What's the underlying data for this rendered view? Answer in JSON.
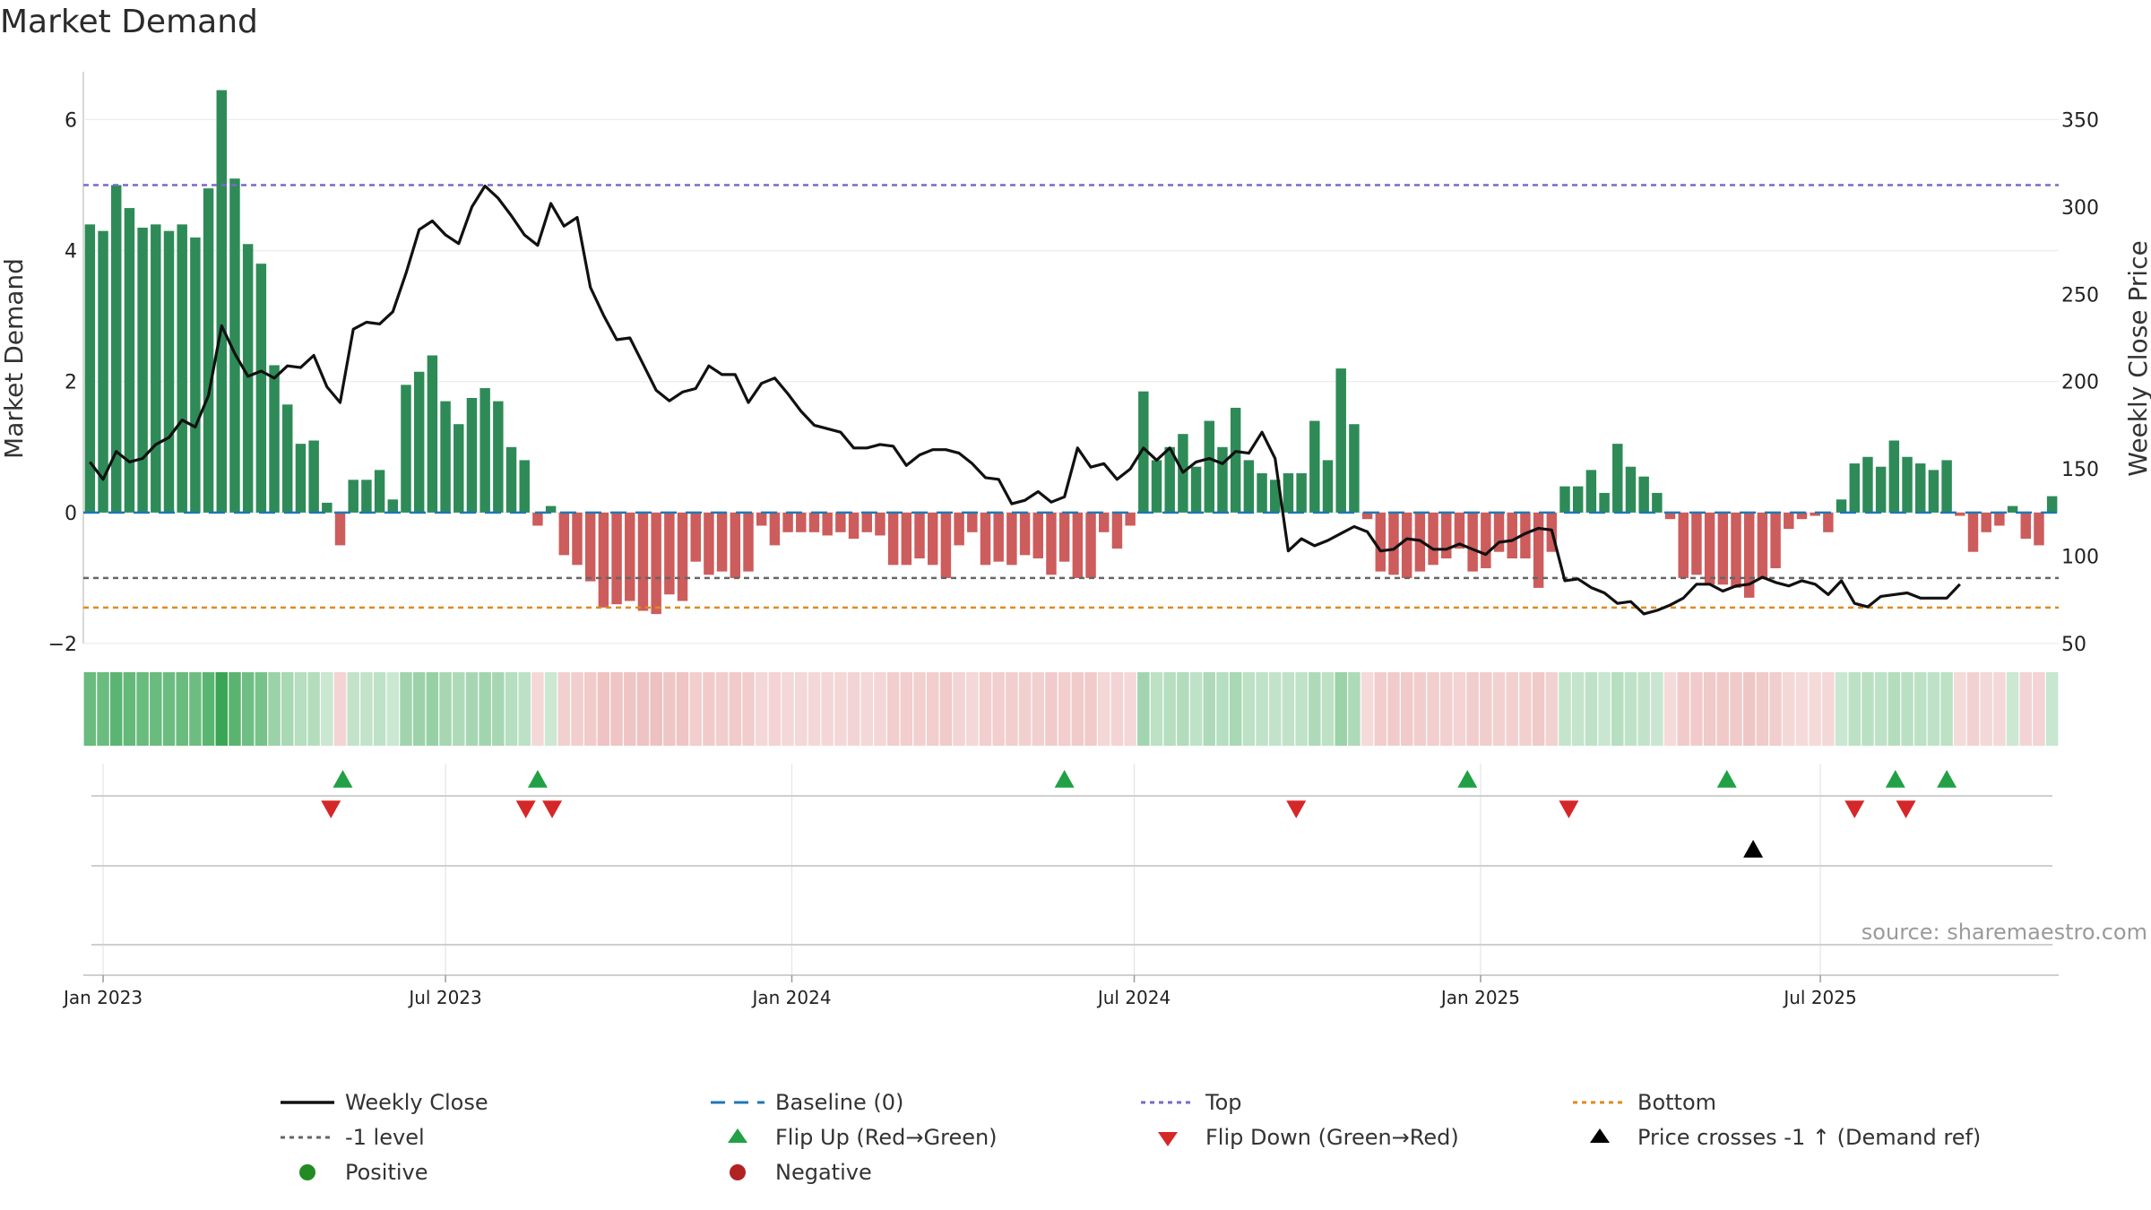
{
  "title": "Market Demand",
  "source_text": "source: sharemaestro.com",
  "colors": {
    "positive_bar": "#2e8b57",
    "negative_bar": "#cd5c5c",
    "price_line": "#111111",
    "baseline": "#1f77b4",
    "top": "#7b68c8",
    "minus1": "#666666",
    "bottom": "#e08a1e",
    "flip_up": "#22a045",
    "flip_down": "#d62728",
    "cross": "#000000",
    "positive_dot": "#228b22",
    "negative_dot": "#b22222"
  },
  "chart_data": {
    "type": "bar+line",
    "title": "Market Demand",
    "ylabel_left": "Market Demand",
    "ylabel_right": "Weekly Close Price",
    "ylim_left": [
      -2,
      6.8
    ],
    "ylim_right": [
      50,
      380
    ],
    "yticks_left": [
      -2,
      0,
      2,
      4,
      6
    ],
    "yticks_left_labels": [
      "−2",
      "0",
      "2",
      "4",
      "6"
    ],
    "yticks_right": [
      50,
      100,
      150,
      200,
      250,
      300,
      350
    ],
    "x_start": "2022-12-26",
    "x_step_days": 7,
    "xticks": [
      {
        "label": "Jan 2023",
        "week": 1
      },
      {
        "label": "Jul 2023",
        "week": 27
      },
      {
        "label": "Jan 2024",
        "week": 53.3
      },
      {
        "label": "Jul 2024",
        "week": 79.3
      },
      {
        "label": "Jan 2025",
        "week": 105.6
      },
      {
        "label": "Jul 2025",
        "week": 131.4
      }
    ],
    "reference_lines": {
      "top": 5.0,
      "minus1_level": -1.0,
      "bottom": -1.45,
      "baseline": 0
    },
    "demand": [
      4.4,
      4.3,
      5.0,
      4.65,
      4.35,
      4.4,
      4.3,
      4.4,
      4.2,
      4.95,
      6.45,
      5.1,
      4.1,
      3.8,
      2.25,
      1.65,
      1.05,
      1.1,
      0.15,
      -0.5,
      0.5,
      0.5,
      0.65,
      0.2,
      1.95,
      2.15,
      2.4,
      1.7,
      1.35,
      1.75,
      1.9,
      1.7,
      1.0,
      0.8,
      -0.2,
      0.1,
      -0.65,
      -0.8,
      -1.05,
      -1.45,
      -1.4,
      -1.35,
      -1.5,
      -1.55,
      -1.25,
      -1.35,
      -0.75,
      -0.95,
      -0.9,
      -1.0,
      -0.9,
      -0.2,
      -0.5,
      -0.3,
      -0.3,
      -0.3,
      -0.35,
      -0.3,
      -0.4,
      -0.3,
      -0.35,
      -0.8,
      -0.8,
      -0.7,
      -0.8,
      -1.0,
      -0.5,
      -0.3,
      -0.8,
      -0.75,
      -0.8,
      -0.65,
      -0.7,
      -0.95,
      -0.75,
      -1.0,
      -1.0,
      -0.3,
      -0.55,
      -0.2,
      1.85,
      0.8,
      1.0,
      1.2,
      0.7,
      1.4,
      1.0,
      1.6,
      0.8,
      0.6,
      0.5,
      0.6,
      0.6,
      1.4,
      0.8,
      2.2,
      1.35,
      -0.1,
      -0.9,
      -0.95,
      -1.0,
      -0.9,
      -0.8,
      -0.7,
      -0.55,
      -0.9,
      -0.85,
      -0.6,
      -0.7,
      -0.7,
      -1.15,
      -0.6,
      0.4,
      0.4,
      0.65,
      0.3,
      1.05,
      0.7,
      0.55,
      0.3,
      -0.1,
      -1.0,
      -0.95,
      -1.1,
      -1.1,
      -1.15,
      -1.3,
      -1.0,
      -0.85,
      -0.25,
      -0.1,
      -0.05,
      -0.3,
      0.2,
      0.75,
      0.85,
      0.7,
      1.1,
      0.85,
      0.75,
      0.65,
      0.8,
      -0.05,
      -0.6,
      -0.3,
      -0.2,
      0.1,
      -0.4,
      -0.5,
      0.25
    ],
    "price": [
      154,
      144,
      160,
      154,
      156,
      164,
      168,
      178,
      174,
      192,
      232,
      216,
      203,
      206,
      202,
      209,
      208,
      215,
      197,
      188,
      230,
      234,
      233,
      240,
      262,
      287,
      292,
      284,
      279,
      300,
      312,
      305,
      295,
      284,
      278,
      302,
      289,
      294,
      254,
      238,
      224,
      225,
      210,
      195,
      189,
      194,
      196,
      209,
      204,
      204,
      188,
      199,
      202,
      193,
      183,
      175,
      173,
      171,
      162,
      162,
      164,
      163,
      152,
      158,
      161,
      161,
      159,
      153,
      145,
      144,
      130,
      132,
      137,
      131,
      134,
      162,
      151,
      153,
      144,
      150,
      162,
      155,
      162,
      148,
      154,
      156,
      153,
      160,
      159,
      171,
      156,
      103,
      110,
      106,
      109,
      113,
      117,
      114,
      103,
      104,
      110,
      109,
      104,
      104,
      107,
      104,
      101,
      108,
      109,
      113,
      116,
      115,
      86,
      87,
      82,
      79,
      73,
      74,
      67,
      69,
      72,
      76,
      84,
      84,
      80,
      83,
      84,
      88,
      85,
      83,
      86,
      84,
      78,
      86,
      73,
      71,
      77,
      78,
      79,
      76,
      76,
      76,
      84
    ],
    "flip_up_weeks": [
      19.2,
      34,
      74,
      104.6,
      124.3,
      137.1,
      141
    ],
    "flip_down_weeks": [
      18.3,
      33.1,
      35.1,
      91.6,
      112.3,
      134,
      137.9
    ],
    "price_cross_up_weeks": [
      126.3
    ],
    "legend_location": "bottom"
  },
  "legend": {
    "items": [
      {
        "key": "weekly_close",
        "label": "Weekly Close",
        "marker": "line",
        "color": "#111111"
      },
      {
        "key": "baseline",
        "label": "Baseline (0)",
        "marker": "dash",
        "color": "#1f77b4"
      },
      {
        "key": "top",
        "label": "Top",
        "marker": "dot-line",
        "color": "#7b68c8"
      },
      {
        "key": "bottom",
        "label": "Bottom",
        "marker": "dot-line",
        "color": "#e08a1e"
      },
      {
        "key": "minus1",
        "label": "-1 level",
        "marker": "dot-line",
        "color": "#666666"
      },
      {
        "key": "flip_up",
        "label": "Flip Up (Red→Green)",
        "marker": "triangle-up",
        "color": "#22a045"
      },
      {
        "key": "flip_down",
        "label": "Flip Down (Green→Red)",
        "marker": "triangle-down",
        "color": "#d62728"
      },
      {
        "key": "cross",
        "label": "Price crosses -1 ↑ (Demand ref)",
        "marker": "triangle-up",
        "color": "#000000"
      },
      {
        "key": "positive",
        "label": "Positive",
        "marker": "circle",
        "color": "#228b22"
      },
      {
        "key": "negative",
        "label": "Negative",
        "marker": "circle",
        "color": "#b22222"
      }
    ]
  }
}
